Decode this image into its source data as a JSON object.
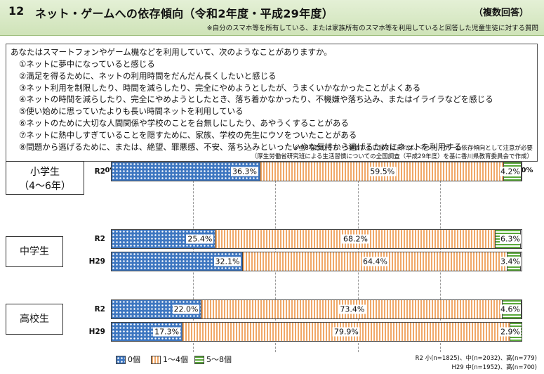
{
  "header": {
    "number": "12",
    "title": "ネット・ゲームへの依存傾向（令和2年度・平成29年度）",
    "tag": "（複数回答）",
    "note": "※自分のスマホ等を所有している、または家族所有のスマホ等を利用していると回答した児童生徒に対する質問"
  },
  "question": {
    "intro": "あなたはスマートフォンやゲーム機などを利用していて、次のようなことがありますか。",
    "items": [
      "①ネットに夢中になっていると感じる",
      "②満足を得るために、ネットの利用時間をだんだん長くしたいと感じる",
      "③ネット利用を制限したり、時間を減らしたり、完全にやめようとしたが、うまくいかなかったことがよくある",
      "④ネットの時間を減らしたり、完全にやめようとしたとき、落ち着かなかったり、不機嫌や落ち込み、またはイライラなどを感じる",
      "⑤使い始めに思っていたよりも長い時間ネットを利用している",
      "⑥ネットのために大切な人間関係や学校のことを台無しにしたり、あやうくすることがある",
      "⑦ネットに熱中しすぎていることを隠すために、家族、学校の先生にウソをついたことがある",
      "⑧問題から逃げるために、または、絶望、罪悪感、不安、落ち込みといったいやな気持から逃げるためにネットを利用する"
    ],
    "footnote1": "※全8項目のうち、5項目以上に当てはまれば、ネット・ゲーム依存傾向として注意が必要",
    "footnote2": "（厚生労働省研究班による生活習慣についての全国調査（平成29年度）を基に香川県教育委員会で作成）"
  },
  "groups": [
    {
      "line1": "小学生",
      "line2": "（4～6年）"
    },
    {
      "line1": "中学生",
      "line2": ""
    },
    {
      "line1": "高校生",
      "line2": ""
    }
  ],
  "notes": {
    "line1": "R2 小(n=1825)、中(n=2032)、高(n=779)",
    "line2": "H29 中(n=1952)、高(n=700)"
  },
  "colors": {
    "s0": "#3d76c0",
    "s1": "#f0a868",
    "s2": "#5aa83a"
  },
  "chart_data": {
    "type": "bar",
    "orientation": "horizontal",
    "stacked": true,
    "xlim": [
      0,
      100
    ],
    "xticks": [
      "0%",
      "20%",
      "40%",
      "60%",
      "80%",
      "100%"
    ],
    "series": [
      {
        "name": "0個",
        "color": "#3d76c0"
      },
      {
        "name": "1～4個",
        "color": "#f0a868"
      },
      {
        "name": "5～8個",
        "color": "#5aa83a"
      }
    ],
    "rows": [
      {
        "group": "小学生",
        "label": "R2",
        "values": [
          36.3,
          59.5,
          4.2
        ],
        "labels": [
          "36.3%",
          "59.5%",
          "4.2%"
        ]
      },
      {
        "group": "中学生",
        "label": "R2",
        "values": [
          25.4,
          68.2,
          6.3
        ],
        "labels": [
          "25.4%",
          "68.2%",
          "6.3%"
        ]
      },
      {
        "group": "中学生",
        "label": "H29",
        "values": [
          32.1,
          64.4,
          3.4
        ],
        "labels": [
          "32.1%",
          "64.4%",
          "3.4%"
        ]
      },
      {
        "group": "高校生",
        "label": "R2",
        "values": [
          22.0,
          73.4,
          4.6
        ],
        "labels": [
          "22.0%",
          "73.4%",
          "4.6%"
        ]
      },
      {
        "group": "高校生",
        "label": "H29",
        "values": [
          17.3,
          79.9,
          2.9
        ],
        "labels": [
          "17.3%",
          "79.9%",
          "2.9%"
        ]
      }
    ]
  }
}
